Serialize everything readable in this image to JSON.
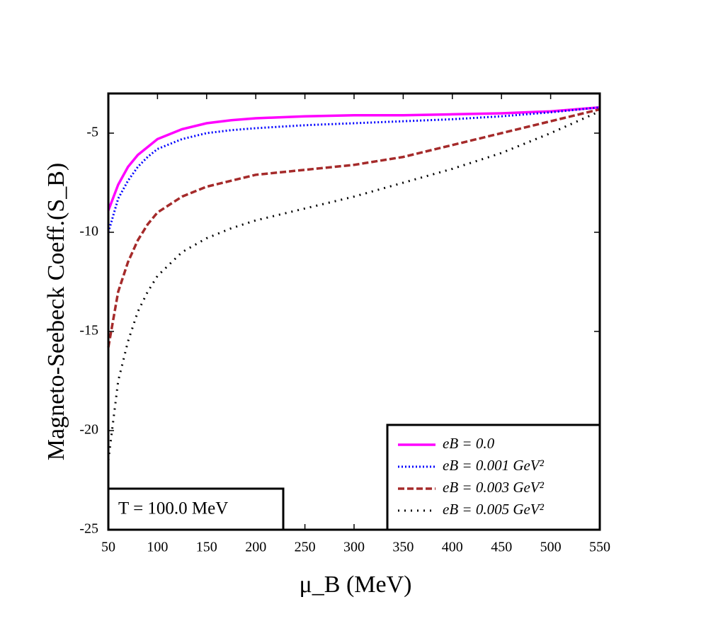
{
  "chart_data": {
    "type": "line",
    "xlabel": "μ_B (MeV)",
    "ylabel": "Magneto-Seebeck Coeff.(S_B)",
    "annotation": "T = 100.0 MeV",
    "x": [
      50,
      60,
      70,
      80,
      90,
      100,
      125,
      150,
      175,
      200,
      250,
      300,
      350,
      400,
      450,
      500,
      550
    ],
    "series": [
      {
        "name": "eB = 0.0",
        "color": "#ff00ff",
        "line_style": "solid",
        "values": [
          -8.9,
          -7.6,
          -6.7,
          -6.1,
          -5.7,
          -5.3,
          -4.8,
          -4.5,
          -4.35,
          -4.25,
          -4.15,
          -4.1,
          -4.1,
          -4.05,
          -4.0,
          -3.9,
          -3.7
        ]
      },
      {
        "name": "eB = 0.001 GeV²",
        "color": "#0000ff",
        "line_style": "dotted",
        "values": [
          -10.0,
          -8.3,
          -7.4,
          -6.7,
          -6.2,
          -5.8,
          -5.3,
          -5.0,
          -4.85,
          -4.75,
          -4.6,
          -4.5,
          -4.4,
          -4.3,
          -4.15,
          -3.95,
          -3.7
        ]
      },
      {
        "name": "eB = 0.003 GeV²",
        "color": "#a52a2a",
        "line_style": "dashed",
        "values": [
          -15.8,
          -13.0,
          -11.5,
          -10.4,
          -9.6,
          -9.0,
          -8.2,
          -7.7,
          -7.4,
          -7.1,
          -6.85,
          -6.6,
          -6.2,
          -5.6,
          -5.0,
          -4.4,
          -3.8
        ]
      },
      {
        "name": "eB = 0.005 GeV²",
        "color": "#000000",
        "line_style": "loosely-dotted",
        "values": [
          -21.5,
          -17.5,
          -15.5,
          -14.0,
          -13.0,
          -12.2,
          -11.0,
          -10.3,
          -9.8,
          -9.4,
          -8.8,
          -8.2,
          -7.5,
          -6.8,
          -6.0,
          -5.0,
          -3.9
        ]
      }
    ],
    "xlim": [
      50,
      550
    ],
    "xticks": [
      50,
      100,
      150,
      200,
      250,
      300,
      350,
      400,
      450,
      500,
      550
    ],
    "ylim": [
      -25,
      -3
    ],
    "yticks": [
      -25,
      -20,
      -15,
      -10,
      -5
    ],
    "legend": "lower right"
  }
}
